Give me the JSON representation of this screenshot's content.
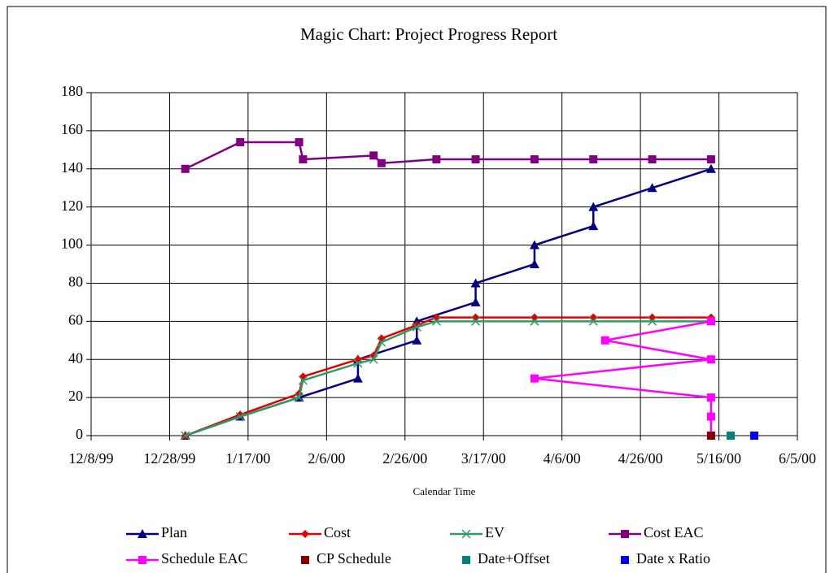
{
  "chart_data": {
    "type": "line",
    "title": "Magic Chart: Project Progress Report",
    "x_label": "Calendar Time",
    "xlim": [
      "12/8/99",
      "6/5/00"
    ],
    "xticks": [
      "12/8/99",
      "12/28/99",
      "1/17/00",
      "2/6/00",
      "2/26/00",
      "3/17/00",
      "4/6/00",
      "4/26/00",
      "5/16/00",
      "6/5/00"
    ],
    "ylim": [
      0,
      180
    ],
    "yticks": [
      0,
      20,
      40,
      60,
      80,
      100,
      120,
      140,
      160,
      180
    ],
    "grid": true,
    "legend": "bottom",
    "series": [
      {
        "name": "Plan",
        "color": "#000080",
        "marker": "triangle",
        "line": true,
        "x": [
          "1/1/00",
          "1/15/00",
          "1/30/00",
          "2/14/00",
          "2/14/00",
          "2/29/00",
          "2/29/00",
          "3/15/00",
          "3/15/00",
          "3/30/00",
          "3/30/00",
          "4/14/00",
          "4/14/00",
          "4/29/00",
          "5/14/00"
        ],
        "values": [
          0,
          10,
          20,
          30,
          40,
          50,
          60,
          70,
          80,
          90,
          100,
          110,
          120,
          130,
          140
        ]
      },
      {
        "name": "Cost",
        "color": "#e00000",
        "marker": "diamond",
        "line": true,
        "x": [
          "1/1/00",
          "1/15/00",
          "1/30/00",
          "1/31/00",
          "2/14/00",
          "2/18/00",
          "2/20/00",
          "2/29/00",
          "3/5/00",
          "3/15/00",
          "3/30/00",
          "4/14/00",
          "4/29/00",
          "5/14/00"
        ],
        "values": [
          0,
          11,
          22,
          31,
          40,
          42,
          51,
          58,
          62,
          62,
          62,
          62,
          62,
          62
        ]
      },
      {
        "name": "EV",
        "color": "#339966",
        "marker": "x",
        "line": true,
        "x": [
          "1/1/00",
          "1/15/00",
          "1/30/00",
          "1/31/00",
          "2/14/00",
          "2/18/00",
          "2/20/00",
          "2/29/00",
          "3/5/00",
          "3/15/00",
          "3/30/00",
          "4/14/00",
          "4/29/00",
          "5/14/00"
        ],
        "values": [
          0,
          10,
          20,
          29,
          38,
          40,
          49,
          57,
          60,
          60,
          60,
          60,
          60,
          60
        ]
      },
      {
        "name": "Cost EAC",
        "color": "#800080",
        "marker": "square",
        "line": true,
        "x": [
          "1/1/00",
          "1/15/00",
          "1/30/00",
          "1/31/00",
          "2/18/00",
          "2/20/00",
          "3/5/00",
          "3/15/00",
          "3/30/00",
          "4/14/00",
          "4/29/00",
          "5/14/00"
        ],
        "values": [
          140,
          154,
          154,
          145,
          147,
          143,
          145,
          145,
          145,
          145,
          145,
          145
        ]
      },
      {
        "name": "Schedule EAC",
        "color": "#ff00ff",
        "marker": "square",
        "line": true,
        "x": [
          "5/14/00",
          "4/17/00",
          "5/14/00",
          "3/30/00",
          "5/14/00",
          "5/14/00",
          "5/14/00"
        ],
        "values": [
          60,
          50,
          40,
          30,
          20,
          10,
          0
        ]
      },
      {
        "name": "CP Schedule",
        "color": "#800000",
        "marker": "square",
        "line": false,
        "x": [
          "5/14/00"
        ],
        "values": [
          0
        ]
      },
      {
        "name": "Date+Offset",
        "color": "#008080",
        "marker": "square",
        "line": false,
        "x": [
          "5/19/00"
        ],
        "values": [
          0
        ]
      },
      {
        "name": "Date x Ratio",
        "color": "#0000ff",
        "marker": "square",
        "line": false,
        "x": [
          "5/25/00"
        ],
        "values": [
          0
        ]
      }
    ]
  }
}
